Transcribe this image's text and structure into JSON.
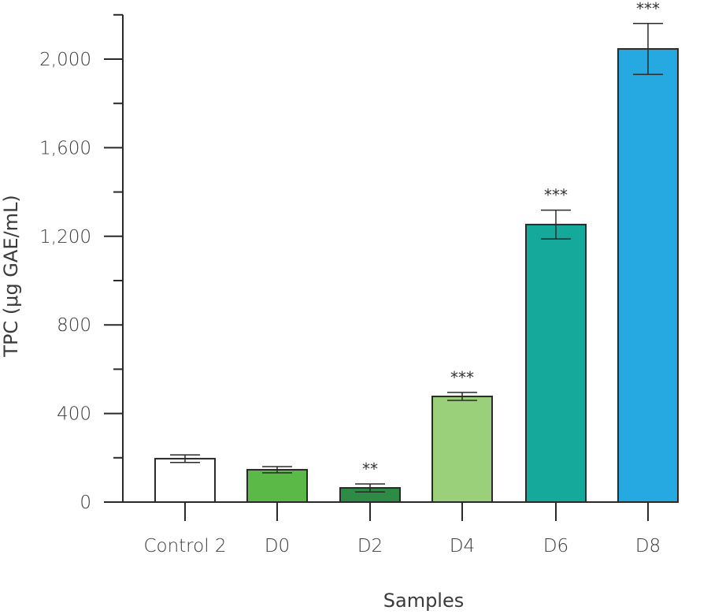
{
  "chart_data": {
    "type": "bar",
    "title": "",
    "xlabel": "Samples",
    "ylabel": "TPC (μg GAE/mL)",
    "ylim": [
      0,
      2200
    ],
    "yticks_major": [
      0,
      400,
      800,
      1200,
      1600,
      2000
    ],
    "ytick_labels": [
      "0",
      "400",
      "800",
      "1,200",
      "1,600",
      "2,000"
    ],
    "yticks_minor": [
      200,
      600,
      1000,
      1400,
      1800,
      2200
    ],
    "grid": false,
    "legend": "none",
    "categories": [
      "Control 2",
      "D0",
      "D2",
      "D4",
      "D6",
      "D8"
    ],
    "values": [
      196,
      146,
      64,
      477,
      1253,
      2046
    ],
    "errors": [
      17,
      14,
      18,
      18,
      65,
      115
    ],
    "significance": [
      "",
      "",
      "**",
      "***",
      "***",
      "***"
    ],
    "colors": [
      "#ffffff",
      "#5bba47",
      "#2e8b45",
      "#9bd07a",
      "#14a99b",
      "#26a9e0"
    ]
  }
}
